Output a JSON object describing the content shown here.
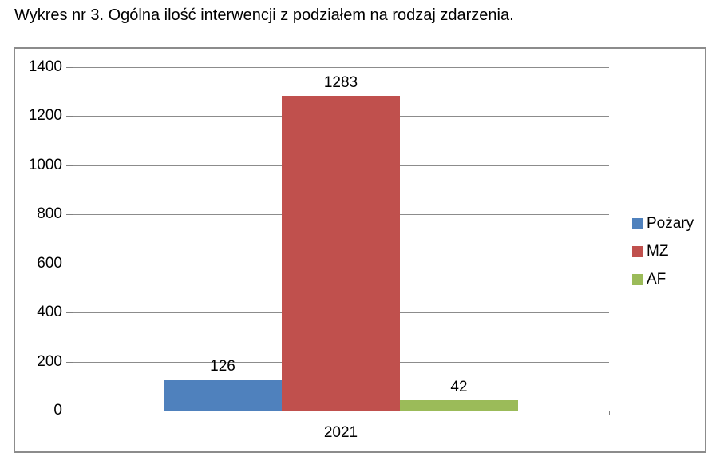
{
  "caption": "Wykres nr 3. Ogólna ilość interwencji z podziałem na rodzaj zdarzenia.",
  "chart_data": {
    "type": "bar",
    "title": "Wykres nr 3. Ogólna ilość interwencji z podziałem na rodzaj zdarzenia.",
    "categories": [
      "2021"
    ],
    "series": [
      {
        "name": "Pożary",
        "color": "#4F81BD",
        "values": [
          126
        ]
      },
      {
        "name": "MZ",
        "color": "#C0504D",
        "values": [
          1283
        ]
      },
      {
        "name": "AF",
        "color": "#9BBB59",
        "values": [
          42
        ]
      }
    ],
    "data_labels": [
      126,
      1283,
      42
    ],
    "ylim": [
      0,
      1400
    ],
    "ytick_interval": 200,
    "ytick_labels": [
      "0",
      "200",
      "400",
      "600",
      "800",
      "1000",
      "1200",
      "1400"
    ],
    "grid": "horizontal",
    "legend_position": "right",
    "legend_entries": [
      "Pożary",
      "MZ",
      "AF"
    ]
  },
  "colors": {
    "bar_blue": "#4F81BD",
    "bar_red": "#C0504D",
    "bar_green": "#9BBB59",
    "grid_line": "#8c8c8c",
    "axis_line": "#808080",
    "frame_border": "#8c8c8c",
    "text": "#000000",
    "background": "#FFFFFF"
  }
}
